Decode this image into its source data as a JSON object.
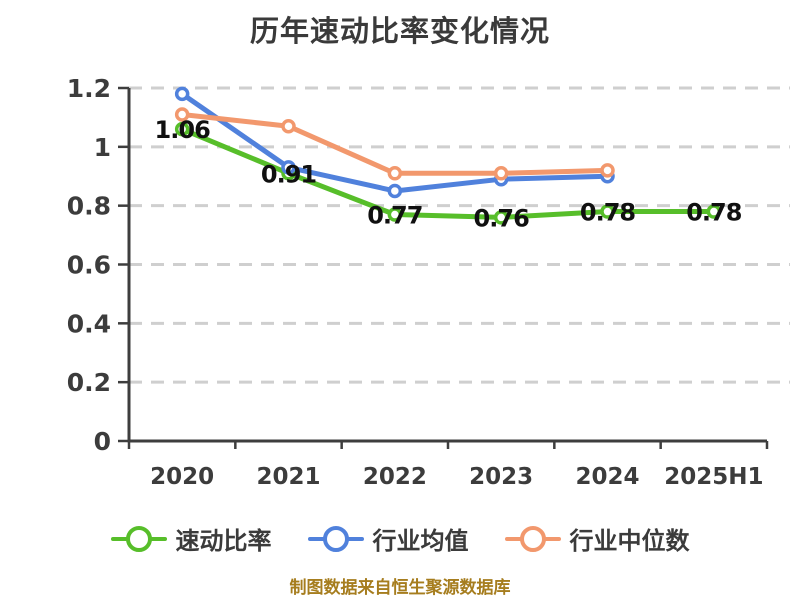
{
  "page": {
    "background": "#FFFFFF"
  },
  "header": {
    "title": "历年速动比率变化情况"
  },
  "footer": {
    "caption": "制图数据来自恒生聚源数据库"
  },
  "colors": {
    "quick_ratio": "#57BE2A",
    "industry_avg": "#5081DC",
    "industry_median": "#F2986D",
    "grid": "#CFCFCF",
    "axis": "#3E3E3E",
    "tick_text": "#3C3C3C",
    "value_label": "#101010",
    "title_text": "#3A3A3A",
    "caption_text": "#A67D1E",
    "marker_fill": "#FFFFFF"
  },
  "chart_data": {
    "type": "line",
    "title": "历年速动比率变化情况",
    "categories": [
      "2020",
      "2021",
      "2022",
      "2023",
      "2024",
      "2025H1"
    ],
    "series": [
      {
        "name": "速动比率",
        "color_key": "quick_ratio",
        "values": [
          1.06,
          0.91,
          0.77,
          0.76,
          0.78,
          0.78
        ],
        "point_labels": [
          "1.06",
          "0.91",
          "0.77",
          "0.76",
          "0.78",
          "0.78"
        ]
      },
      {
        "name": "行业均值",
        "color_key": "industry_avg",
        "values": [
          1.18,
          0.93,
          0.85,
          0.89,
          0.9,
          null
        ],
        "point_labels": []
      },
      {
        "name": "行业中位数",
        "color_key": "industry_median",
        "values": [
          1.11,
          1.07,
          0.91,
          0.91,
          0.92,
          null
        ],
        "point_labels": []
      }
    ],
    "ylim": [
      0,
      1.2
    ],
    "yticks": [
      0,
      0.2,
      0.4,
      0.6,
      0.8,
      1.0,
      1.2
    ],
    "ytick_labels": [
      "0",
      "0.2",
      "0.4",
      "0.6",
      "0.8",
      "1",
      "1.2"
    ],
    "grid": "horizontal-dashed",
    "legend_position": "bottom",
    "caption": "制图数据来自恒生聚源数据库"
  },
  "legend": {
    "items": [
      {
        "label": "速动比率"
      },
      {
        "label": "行业均值"
      },
      {
        "label": "行业中位数"
      }
    ]
  }
}
